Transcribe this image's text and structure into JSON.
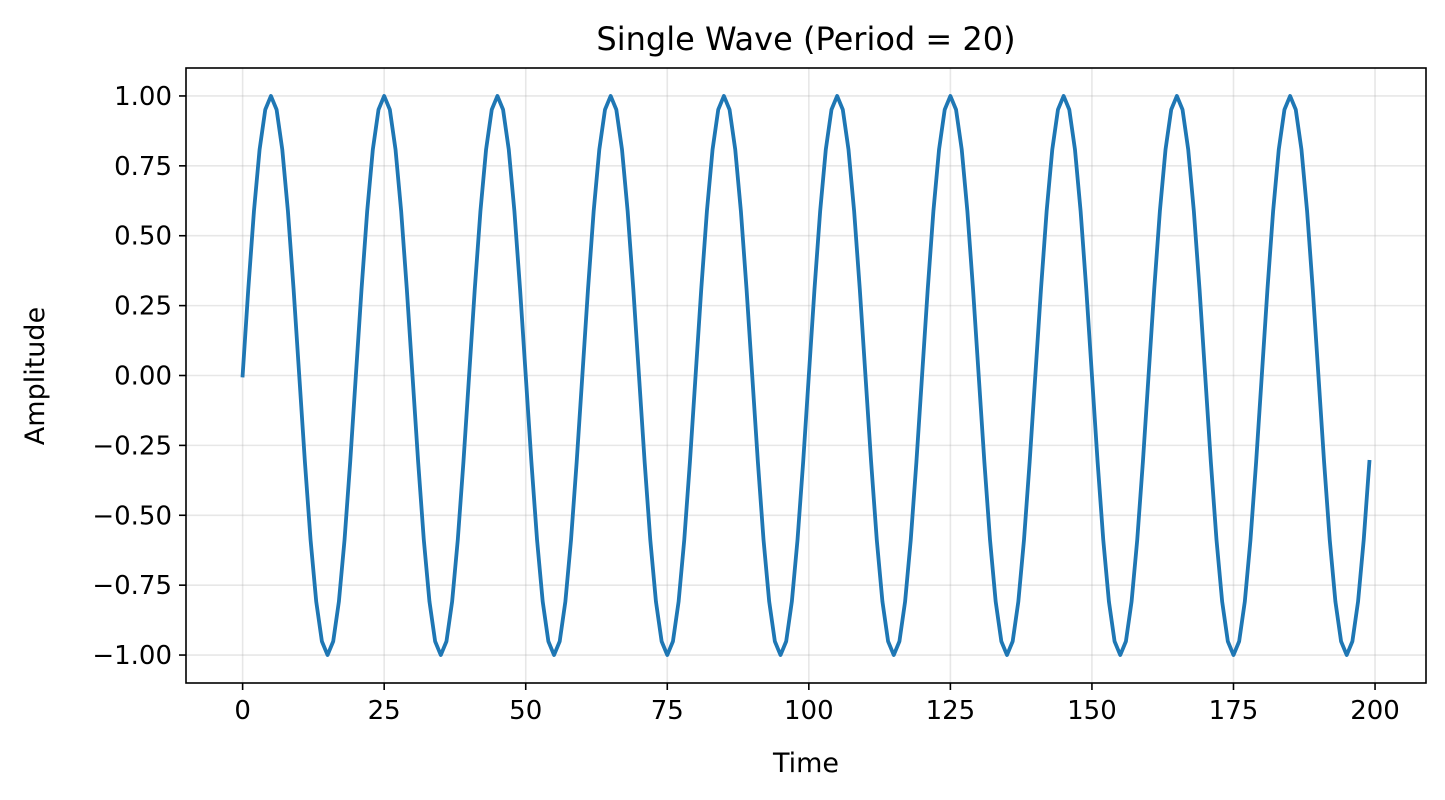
{
  "chart_data": {
    "type": "line",
    "title": "Single Wave (Period = 20)",
    "xlabel": "Time",
    "ylabel": "Amplitude",
    "xlim": [
      -10,
      209
    ],
    "ylim": [
      -1.1,
      1.1
    ],
    "grid": true,
    "line_color": "#1f77b4",
    "x_ticks": [
      0,
      25,
      50,
      75,
      100,
      125,
      150,
      175,
      200
    ],
    "x_tick_labels": [
      "0",
      "25",
      "50",
      "75",
      "100",
      "125",
      "150",
      "175",
      "200"
    ],
    "y_ticks": [
      1,
      0.75,
      0.5,
      0.25,
      0,
      -0.25,
      -0.5,
      -0.75,
      -1
    ],
    "y_tick_labels": [
      "1.00",
      "0.75",
      "0.50",
      "0.25",
      "0.00",
      "−0.25",
      "−0.50",
      "−0.75",
      "−1.00"
    ],
    "series": [
      {
        "x": [
          0,
          1,
          2,
          3,
          4,
          5,
          6,
          7,
          8,
          9,
          10,
          11,
          12,
          13,
          14,
          15,
          16,
          17,
          18,
          19,
          20,
          21,
          22,
          23,
          24,
          25,
          26,
          27,
          28,
          29,
          30,
          31,
          32,
          33,
          34,
          35,
          36,
          37,
          38,
          39,
          40,
          41,
          42,
          43,
          44,
          45,
          46,
          47,
          48,
          49,
          50,
          51,
          52,
          53,
          54,
          55,
          56,
          57,
          58,
          59,
          60,
          61,
          62,
          63,
          64,
          65,
          66,
          67,
          68,
          69,
          70,
          71,
          72,
          73,
          74,
          75,
          76,
          77,
          78,
          79,
          80,
          81,
          82,
          83,
          84,
          85,
          86,
          87,
          88,
          89,
          90,
          91,
          92,
          93,
          94,
          95,
          96,
          97,
          98,
          99,
          100,
          101,
          102,
          103,
          104,
          105,
          106,
          107,
          108,
          109,
          110,
          111,
          112,
          113,
          114,
          115,
          116,
          117,
          118,
          119,
          120,
          121,
          122,
          123,
          124,
          125,
          126,
          127,
          128,
          129,
          130,
          131,
          132,
          133,
          134,
          135,
          136,
          137,
          138,
          139,
          140,
          141,
          142,
          143,
          144,
          145,
          146,
          147,
          148,
          149,
          150,
          151,
          152,
          153,
          154,
          155,
          156,
          157,
          158,
          159,
          160,
          161,
          162,
          163,
          164,
          165,
          166,
          167,
          168,
          169,
          170,
          171,
          172,
          173,
          174,
          175,
          176,
          177,
          178,
          179,
          180,
          181,
          182,
          183,
          184,
          185,
          186,
          187,
          188,
          189,
          190,
          191,
          192,
          193,
          194,
          195,
          196,
          197,
          198,
          199
        ],
        "y": [
          0,
          0.309,
          0.588,
          0.809,
          0.951,
          1,
          0.951,
          0.809,
          0.588,
          0.309,
          0,
          -0.309,
          -0.588,
          -0.809,
          -0.951,
          -1,
          -0.951,
          -0.809,
          -0.588,
          -0.309,
          0,
          0.309,
          0.588,
          0.809,
          0.951,
          1,
          0.951,
          0.809,
          0.588,
          0.309,
          0,
          -0.309,
          -0.588,
          -0.809,
          -0.951,
          -1,
          -0.951,
          -0.809,
          -0.588,
          -0.309,
          0,
          0.309,
          0.588,
          0.809,
          0.951,
          1,
          0.951,
          0.809,
          0.588,
          0.309,
          0,
          -0.309,
          -0.588,
          -0.809,
          -0.951,
          -1,
          -0.951,
          -0.809,
          -0.588,
          -0.309,
          0,
          0.309,
          0.588,
          0.809,
          0.951,
          1,
          0.951,
          0.809,
          0.588,
          0.309,
          0,
          -0.309,
          -0.588,
          -0.809,
          -0.951,
          -1,
          -0.951,
          -0.809,
          -0.588,
          -0.309,
          0,
          0.309,
          0.588,
          0.809,
          0.951,
          1,
          0.951,
          0.809,
          0.588,
          0.309,
          0,
          -0.309,
          -0.588,
          -0.809,
          -0.951,
          -1,
          -0.951,
          -0.809,
          -0.588,
          -0.309,
          0,
          0.309,
          0.588,
          0.809,
          0.951,
          1,
          0.951,
          0.809,
          0.588,
          0.309,
          0,
          -0.309,
          -0.588,
          -0.809,
          -0.951,
          -1,
          -0.951,
          -0.809,
          -0.588,
          -0.309,
          0,
          0.309,
          0.588,
          0.809,
          0.951,
          1,
          0.951,
          0.809,
          0.588,
          0.309,
          0,
          -0.309,
          -0.588,
          -0.809,
          -0.951,
          -1,
          -0.951,
          -0.809,
          -0.588,
          -0.309,
          0,
          0.309,
          0.588,
          0.809,
          0.951,
          1,
          0.951,
          0.809,
          0.588,
          0.309,
          0,
          -0.309,
          -0.588,
          -0.809,
          -0.951,
          -1,
          -0.951,
          -0.809,
          -0.588,
          -0.309,
          0,
          0.309,
          0.588,
          0.809,
          0.951,
          1,
          0.951,
          0.809,
          0.588,
          0.309,
          0,
          -0.309,
          -0.588,
          -0.809,
          -0.951,
          -1,
          -0.951,
          -0.809,
          -0.588,
          -0.309,
          0,
          0.309,
          0.588,
          0.809,
          0.951,
          1,
          0.951,
          0.809,
          0.588,
          0.309,
          0,
          -0.309,
          -0.588,
          -0.809,
          -0.951,
          -1,
          -0.951,
          -0.809,
          -0.588,
          -0.309
        ]
      }
    ]
  }
}
